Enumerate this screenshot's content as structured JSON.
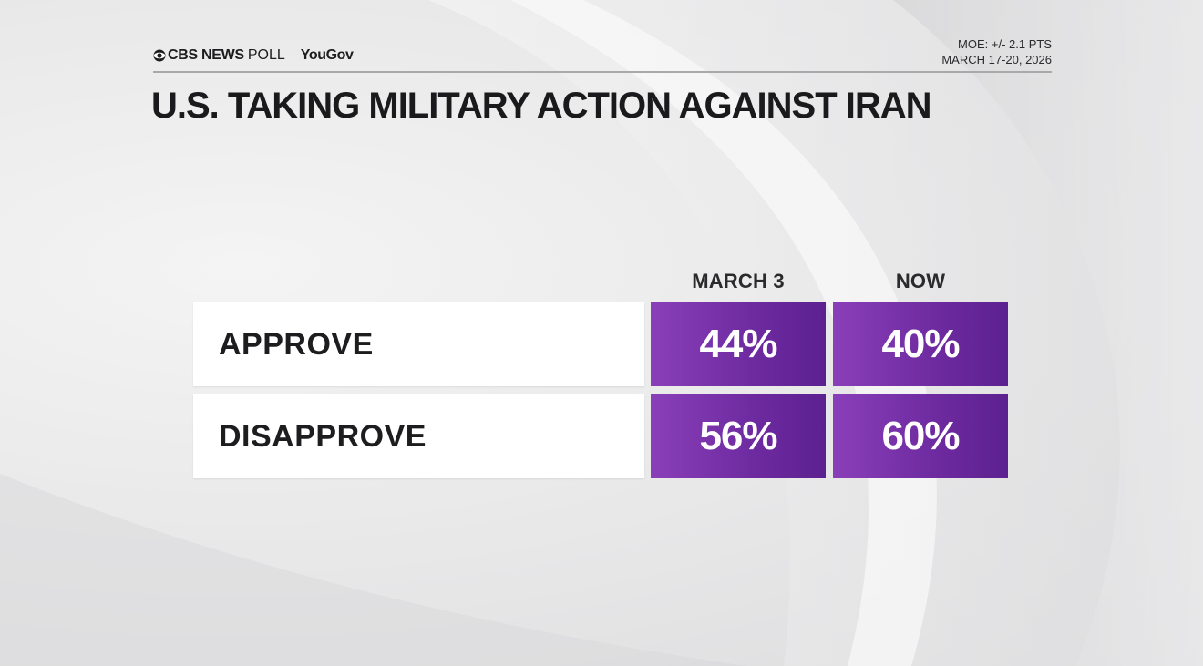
{
  "header": {
    "brand_cbs": "CBS NEWS",
    "brand_poll": "POLL",
    "brand_partner": "YouGov",
    "moe": "MOE: +/- 2.1 PTS",
    "dates": "MARCH 17-20, 2026"
  },
  "title": "U.S. TAKING MILITARY ACTION AGAINST IRAN",
  "colors": {
    "cell": "#6d2a9f",
    "label_bg": "#ffffff"
  },
  "chart_data": {
    "type": "table",
    "title": "U.S. TAKING MILITARY ACTION AGAINST IRAN",
    "columns": [
      "MARCH 3",
      "NOW"
    ],
    "rows": [
      {
        "label": "APPROVE",
        "values": [
          44,
          40
        ],
        "display": [
          "44%",
          "40%"
        ]
      },
      {
        "label": "DISAPPROVE",
        "values": [
          56,
          60
        ],
        "display": [
          "56%",
          "60%"
        ]
      }
    ],
    "unit": "%"
  }
}
